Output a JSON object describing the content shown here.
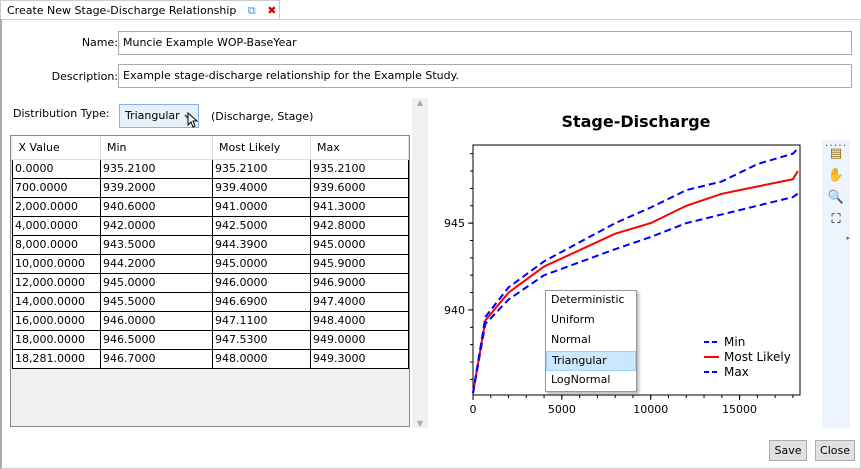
{
  "tab": {
    "title": "Create New Stage-Discharge Relationship",
    "popout_icon": "popout-icon",
    "close_icon": "close-icon"
  },
  "form": {
    "name_label": "Name:",
    "name_value": "Muncie Example WOP-BaseYear",
    "description_label": "Description:",
    "description_value": "Example stage-discharge relationship for the Example Study.",
    "distribution_label": "Distribution Type:",
    "distribution_value": "Triangular",
    "pair_hint": "(Discharge, Stage)",
    "distribution_options": [
      "Deterministic",
      "Uniform",
      "Normal",
      "Triangular",
      "LogNormal"
    ]
  },
  "table": {
    "columns": [
      "X Value",
      "Min",
      "Most Likely",
      "Max"
    ],
    "rows": [
      [
        "0.0000",
        "935.2100",
        "935.2100",
        "935.2100"
      ],
      [
        "700.0000",
        "939.2000",
        "939.4000",
        "939.6000"
      ],
      [
        "2,000.0000",
        "940.6000",
        "941.0000",
        "941.3000"
      ],
      [
        "4,000.0000",
        "942.0000",
        "942.5000",
        "942.8000"
      ],
      [
        "8,000.0000",
        "943.5000",
        "944.3900",
        "945.0000"
      ],
      [
        "10,000.0000",
        "944.2000",
        "945.0000",
        "945.9000"
      ],
      [
        "12,000.0000",
        "945.0000",
        "946.0000",
        "946.9000"
      ],
      [
        "14,000.0000",
        "945.5000",
        "946.6900",
        "947.4000"
      ],
      [
        "16,000.0000",
        "946.0000",
        "947.1100",
        "948.4000"
      ],
      [
        "18,000.0000",
        "946.5000",
        "947.5300",
        "949.0000"
      ],
      [
        "18,281.0000",
        "946.7000",
        "948.0000",
        "949.3000"
      ]
    ]
  },
  "chart_data": {
    "type": "line",
    "title": "Stage-Discharge",
    "xlabel": "",
    "ylabel": "",
    "xlim": [
      0,
      18400
    ],
    "ylim": [
      935.1,
      949.5
    ],
    "xticks": [
      "0",
      "5000",
      "10000",
      "15000"
    ],
    "yticks": [
      "940",
      "945"
    ],
    "legend": "bottom-right",
    "grid": false,
    "x": [
      0,
      700,
      2000,
      4000,
      8000,
      10000,
      12000,
      14000,
      16000,
      18000,
      18281
    ],
    "series": [
      {
        "name": "Min",
        "color": "#0000ff",
        "dash": true,
        "values": [
          935.21,
          939.2,
          940.6,
          942.0,
          943.5,
          944.2,
          945.0,
          945.5,
          946.0,
          946.5,
          946.7
        ]
      },
      {
        "name": "Most Likely",
        "color": "#ff0000",
        "dash": false,
        "values": [
          935.21,
          939.4,
          941.0,
          942.5,
          944.39,
          945.0,
          946.0,
          946.69,
          947.11,
          947.53,
          948.0
        ]
      },
      {
        "name": "Max",
        "color": "#0000ff",
        "dash": true,
        "values": [
          935.21,
          939.6,
          941.3,
          942.8,
          945.0,
          945.9,
          946.9,
          947.4,
          948.4,
          949.0,
          949.3
        ]
      }
    ]
  },
  "toolbar": [
    "annotation-icon",
    "pan-hand-icon",
    "zoom-icon",
    "fit-extent-icon"
  ],
  "buttons": {
    "save": "Save",
    "close": "Close"
  }
}
